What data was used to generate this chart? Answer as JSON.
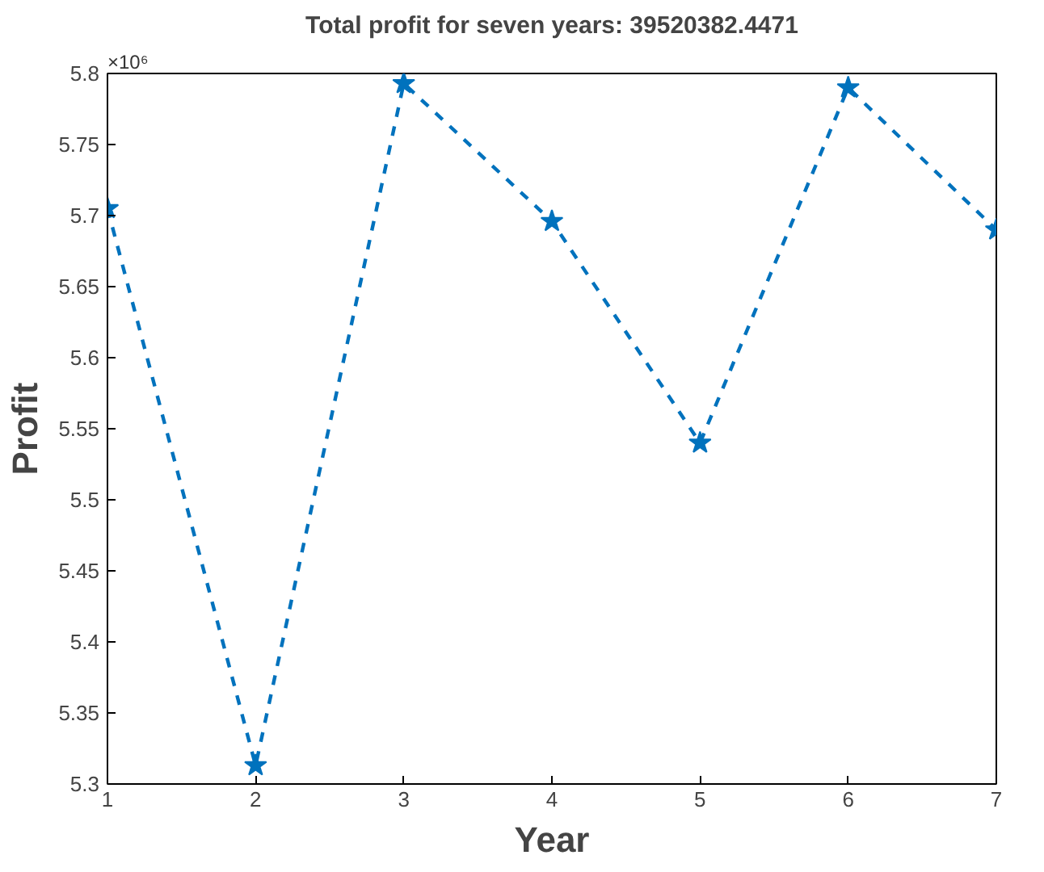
{
  "chart_data": {
    "type": "line",
    "title": "Total profit for seven years: 39520382.4471",
    "xlabel": "Year",
    "ylabel": "Profit",
    "annotations": [
      "×10⁶"
    ],
    "x": [
      1,
      2,
      3,
      4,
      5,
      6,
      7
    ],
    "series": [
      {
        "color": "#0072bd",
        "values": [
          5.705,
          5.313,
          5.793,
          5.696,
          5.54,
          5.79,
          5.69
        ]
      }
    ],
    "xlim": [
      1,
      7
    ],
    "xticks": [
      1,
      2,
      3,
      4,
      5,
      6,
      7
    ],
    "ylim": [
      5.3,
      5.8
    ],
    "yticks": [
      5.3,
      5.35,
      5.4,
      5.45,
      5.5,
      5.55,
      5.6,
      5.65,
      5.7,
      5.75,
      5.8
    ],
    "marker": "star",
    "line_style": "dashed",
    "grid": false
  }
}
